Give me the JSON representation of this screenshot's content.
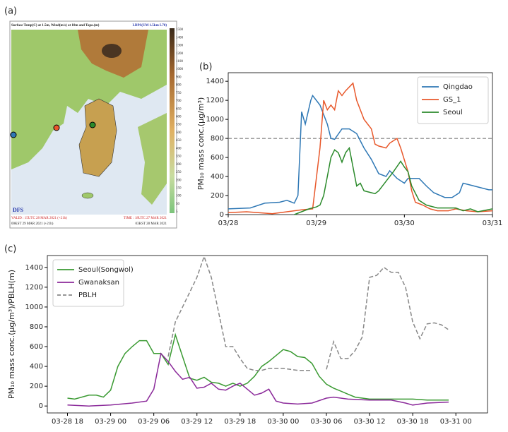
{
  "map_panel": {
    "panel_label": "(a)",
    "title": "Surface Temp(C) at 1.5m, Wind(m/s) at 10m and Topo.(m)",
    "model": "LDPS(UM 1.5km L70)",
    "valid": "VALID : 15UTC 28 MAR 2021 (+21h)",
    "valid_kst": "00KST 29 MAR 2021 (+21h)",
    "time": "TIME : 18UTC 27 MAR 2021",
    "time_kst": "03KST 28 MAR 2021",
    "logo": "DFS",
    "colorbar_labels": [
      "1500",
      "1400",
      "1300",
      "1200",
      "1100",
      "1000",
      "900",
      "800",
      "750",
      "700",
      "650",
      "600",
      "550",
      "500",
      "450",
      "400",
      "350",
      "300",
      "250",
      "200",
      "150",
      "100",
      "50",
      "5"
    ]
  },
  "chart_data": [
    {
      "type": "line",
      "panel_label": "(b)",
      "ylabel": "PM₁₀ mass conc.(μg/m³)",
      "xlim": [
        0,
        72
      ],
      "xticks": [
        {
          "value": 0,
          "label": "03/28"
        },
        {
          "value": 24,
          "label": "03/29"
        },
        {
          "value": 48,
          "label": "03/30"
        },
        {
          "value": 72,
          "label": "03/31"
        }
      ],
      "ylim": [
        0,
        1490
      ],
      "yticks": [
        0,
        200,
        400,
        600,
        800,
        1000,
        1200,
        1400
      ],
      "hline": 800,
      "legend": "upper right",
      "grid": false,
      "series": [
        {
          "name": "Qingdao",
          "color": "#2f78b5",
          "linestyle": "solid",
          "x": [
            0,
            6,
            10,
            14,
            16,
            18,
            19,
            20,
            21,
            22.5,
            23,
            25,
            27,
            28,
            29,
            31,
            33,
            35,
            37,
            39,
            41,
            43,
            44,
            46,
            48,
            49,
            52,
            54,
            56,
            59,
            61,
            63,
            64,
            67,
            71,
            72
          ],
          "values": [
            60,
            70,
            120,
            130,
            150,
            120,
            200,
            1080,
            950,
            1200,
            1250,
            1150,
            950,
            800,
            790,
            900,
            900,
            850,
            700,
            580,
            430,
            400,
            460,
            380,
            330,
            380,
            380,
            300,
            230,
            180,
            180,
            230,
            330,
            300,
            260,
            260
          ]
        },
        {
          "name": "GS_1",
          "color": "#e8582b",
          "linestyle": "solid",
          "x": [
            0,
            5,
            12,
            16,
            20,
            23,
            25,
            26,
            27,
            28,
            29,
            30,
            31,
            32,
            34,
            35,
            37,
            39,
            40,
            41,
            43,
            44,
            46,
            47,
            49,
            50,
            51,
            53,
            55,
            57,
            60,
            62,
            65,
            68,
            72
          ],
          "values": [
            20,
            30,
            10,
            30,
            50,
            60,
            700,
            1200,
            1100,
            1150,
            1100,
            1300,
            1250,
            1300,
            1380,
            1200,
            1000,
            900,
            740,
            720,
            700,
            750,
            800,
            700,
            450,
            250,
            130,
            100,
            60,
            40,
            40,
            60,
            40,
            30,
            40
          ]
        },
        {
          "name": "Seoul",
          "color": "#2b8a2b",
          "linestyle": "solid",
          "x": [
            18,
            22,
            24,
            25,
            26,
            27,
            28,
            29,
            30,
            31,
            32,
            33,
            34,
            35,
            36,
            37,
            39,
            40,
            41,
            43,
            45,
            47,
            48,
            49,
            50,
            52,
            54,
            57,
            60,
            62,
            64,
            66,
            68,
            72
          ],
          "values": [
            0,
            60,
            80,
            100,
            200,
            400,
            600,
            680,
            650,
            550,
            650,
            700,
            500,
            300,
            330,
            250,
            230,
            220,
            250,
            350,
            450,
            560,
            500,
            450,
            300,
            150,
            100,
            70,
            70,
            70,
            40,
            60,
            30,
            60
          ]
        }
      ]
    },
    {
      "type": "line",
      "panel_label": "(c)",
      "ylabel": "PM₁₀ mass conc.(μg/m³)/PBLH(m)",
      "xlim": [
        15.2,
        76.4
      ],
      "xticks": [
        {
          "value": 18,
          "label": "03-28 18"
        },
        {
          "value": 24,
          "label": "03-29 00"
        },
        {
          "value": 30,
          "label": "03-29 06"
        },
        {
          "value": 36,
          "label": "03-29 12"
        },
        {
          "value": 42,
          "label": "03-29 18"
        },
        {
          "value": 48,
          "label": "03-30 00"
        },
        {
          "value": 54,
          "label": "03-30 06"
        },
        {
          "value": 60,
          "label": "03-30 12"
        },
        {
          "value": 66,
          "label": "03-30 18"
        },
        {
          "value": 72,
          "label": "03-31 00"
        }
      ],
      "ylim": [
        -70,
        1520
      ],
      "yticks": [
        0,
        200,
        400,
        600,
        800,
        1000,
        1200,
        1400
      ],
      "legend": "upper left",
      "grid": false,
      "series": [
        {
          "name": "Seoul(Songwol)",
          "color": "#3a9a32",
          "linestyle": "solid",
          "x": [
            18,
            19,
            21,
            22,
            23,
            24,
            25,
            26,
            27,
            28,
            29,
            30,
            31,
            32,
            33,
            34,
            35,
            36,
            37,
            38,
            39,
            40,
            41,
            42,
            43,
            44,
            45,
            46,
            47,
            48,
            49,
            50,
            51,
            52,
            53,
            54,
            55,
            56,
            57,
            58,
            59,
            60,
            63,
            66,
            68,
            71
          ],
          "values": [
            80,
            70,
            110,
            110,
            90,
            160,
            400,
            530,
            600,
            660,
            660,
            530,
            530,
            420,
            720,
            500,
            280,
            260,
            290,
            240,
            230,
            200,
            230,
            200,
            230,
            300,
            400,
            450,
            510,
            570,
            550,
            500,
            490,
            430,
            300,
            220,
            180,
            150,
            120,
            90,
            80,
            70,
            70,
            70,
            60,
            60
          ]
        },
        {
          "name": "Gwanaksan",
          "color": "#8b2a9a",
          "linestyle": "solid",
          "x": [
            18,
            21,
            24,
            27,
            29,
            30,
            31,
            32,
            33,
            34,
            35,
            36,
            37,
            38,
            39,
            40,
            41,
            42,
            43,
            44,
            45,
            46,
            47,
            48,
            50,
            52,
            54,
            55,
            57,
            60,
            63,
            65,
            66,
            68,
            71
          ],
          "values": [
            10,
            0,
            10,
            30,
            50,
            170,
            530,
            450,
            350,
            270,
            290,
            180,
            190,
            230,
            170,
            160,
            200,
            230,
            170,
            110,
            130,
            170,
            50,
            30,
            20,
            30,
            80,
            90,
            70,
            60,
            60,
            30,
            10,
            30,
            40
          ]
        },
        {
          "name": "PBLH",
          "color": "#888888",
          "linestyle": "dashed",
          "x": [
            32,
            33,
            34,
            35,
            36,
            37,
            38,
            39,
            40,
            41,
            42,
            43,
            44,
            45,
            46,
            47,
            48,
            49,
            50,
            51,
            52,
            53,
            54,
            55,
            56,
            57,
            58,
            59,
            60,
            61,
            62,
            63,
            64,
            65,
            66,
            67,
            68,
            69,
            70,
            71
          ],
          "values": [
            500,
            850,
            1000,
            1150,
            1300,
            1510,
            1300,
            950,
            600,
            600,
            480,
            380,
            360,
            360,
            380,
            380,
            380,
            370,
            360,
            360,
            360,
            null,
            370,
            650,
            480,
            480,
            560,
            700,
            1300,
            1320,
            1400,
            1350,
            1350,
            1200,
            850,
            680,
            830,
            840,
            820,
            770
          ]
        }
      ]
    }
  ]
}
